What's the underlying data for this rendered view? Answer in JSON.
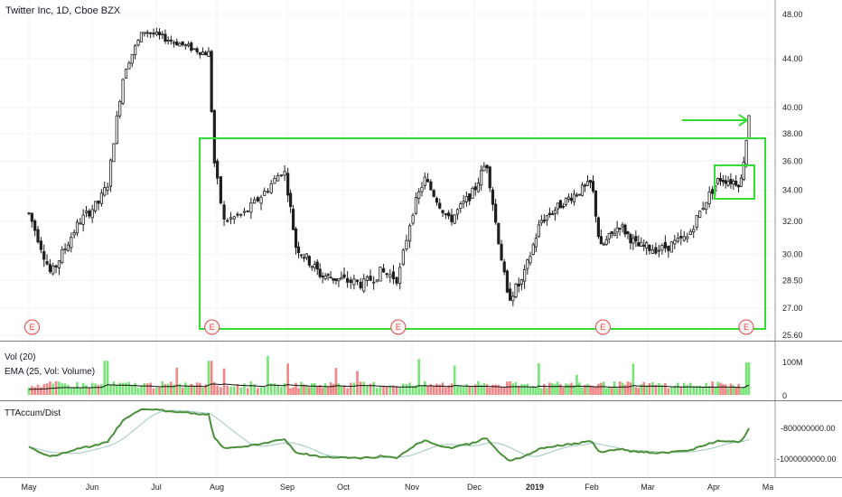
{
  "header": {
    "title": "Twitter Inc, 1D, Cboe BZX"
  },
  "panels": {
    "volume": {
      "title": "Vol (20)",
      "ema_label": "EMA (25, Vol: Volume)"
    },
    "accum": {
      "title": "TTAccum/Dist"
    }
  },
  "colors": {
    "up": "#5fe05f",
    "down": "#f07070",
    "box": "#33dd33",
    "accum_line": "#4a8f3a",
    "accum_ma": "#9cc9c0",
    "ema": "#111111",
    "earnings": "#e04848"
  },
  "chart_data": {
    "type": "candlestick",
    "title": "Twitter Inc, 1D, Cboe BZX",
    "price_axis": {
      "ticks": [
        "48.00",
        "44.00",
        "40.00",
        "38.00",
        "36.00",
        "34.00",
        "32.00",
        "30.00",
        "28.50",
        "27.00",
        "25.60"
      ],
      "ylim": [
        25.6,
        48.0
      ],
      "scale": "log"
    },
    "time_axis": {
      "ticks": [
        "May",
        "Jun",
        "Jul",
        "Aug",
        "Sep",
        "Oct",
        "Nov",
        "Dec",
        "2019",
        "Feb",
        "Mar",
        "Apr",
        "Ma"
      ]
    },
    "price_path": [
      {
        "m": 0,
        "p": 32.5
      },
      {
        "m": 0.35,
        "p": 28.8
      },
      {
        "m": 0.8,
        "p": 32.0
      },
      {
        "m": 1.1,
        "p": 33.2
      },
      {
        "m": 1.25,
        "p": 34.5
      },
      {
        "m": 1.35,
        "p": 38.0
      },
      {
        "m": 1.5,
        "p": 43.0
      },
      {
        "m": 1.8,
        "p": 46.5
      },
      {
        "m": 2.3,
        "p": 45.5
      },
      {
        "m": 2.8,
        "p": 44.5
      },
      {
        "m": 2.9,
        "p": 44.5
      },
      {
        "m": 2.92,
        "p": 37.0
      },
      {
        "m": 3.1,
        "p": 32.0
      },
      {
        "m": 3.4,
        "p": 32.5
      },
      {
        "m": 3.7,
        "p": 34.0
      },
      {
        "m": 3.95,
        "p": 35.5
      },
      {
        "m": 4.15,
        "p": 30.5
      },
      {
        "m": 4.6,
        "p": 28.8
      },
      {
        "m": 5.3,
        "p": 28.3
      },
      {
        "m": 5.55,
        "p": 29.0
      },
      {
        "m": 5.8,
        "p": 28.6
      },
      {
        "m": 6.0,
        "p": 32.5
      },
      {
        "m": 6.2,
        "p": 34.8
      },
      {
        "m": 6.6,
        "p": 32.0
      },
      {
        "m": 7.0,
        "p": 34.0
      },
      {
        "m": 7.2,
        "p": 36.0
      },
      {
        "m": 7.35,
        "p": 32.0
      },
      {
        "m": 7.55,
        "p": 27.5
      },
      {
        "m": 7.8,
        "p": 28.5
      },
      {
        "m": 8.1,
        "p": 32.0
      },
      {
        "m": 8.6,
        "p": 33.5
      },
      {
        "m": 9.0,
        "p": 34.5
      },
      {
        "m": 9.15,
        "p": 30.3
      },
      {
        "m": 9.5,
        "p": 31.8
      },
      {
        "m": 9.8,
        "p": 30.5
      },
      {
        "m": 10.2,
        "p": 30.3
      },
      {
        "m": 10.6,
        "p": 31.0
      },
      {
        "m": 10.9,
        "p": 33.5
      },
      {
        "m": 11.1,
        "p": 34.8
      },
      {
        "m": 11.5,
        "p": 34.5
      },
      {
        "m": 11.6,
        "p": 37.5
      },
      {
        "m": 11.65,
        "p": 39.5
      }
    ],
    "annotations": {
      "range_box": {
        "price_low": 26.8,
        "price_high": 37.8
      },
      "consolidation_box": {
        "price_low": 33.5,
        "price_high": 35.8
      },
      "arrow": "points to latest gap-up",
      "earnings_marker": "E"
    },
    "volume": {
      "ticks": [
        "100M",
        "0"
      ]
    },
    "accum_dist": {
      "ticks": [
        "-800000000.00",
        "-1000000000.00"
      ]
    }
  }
}
